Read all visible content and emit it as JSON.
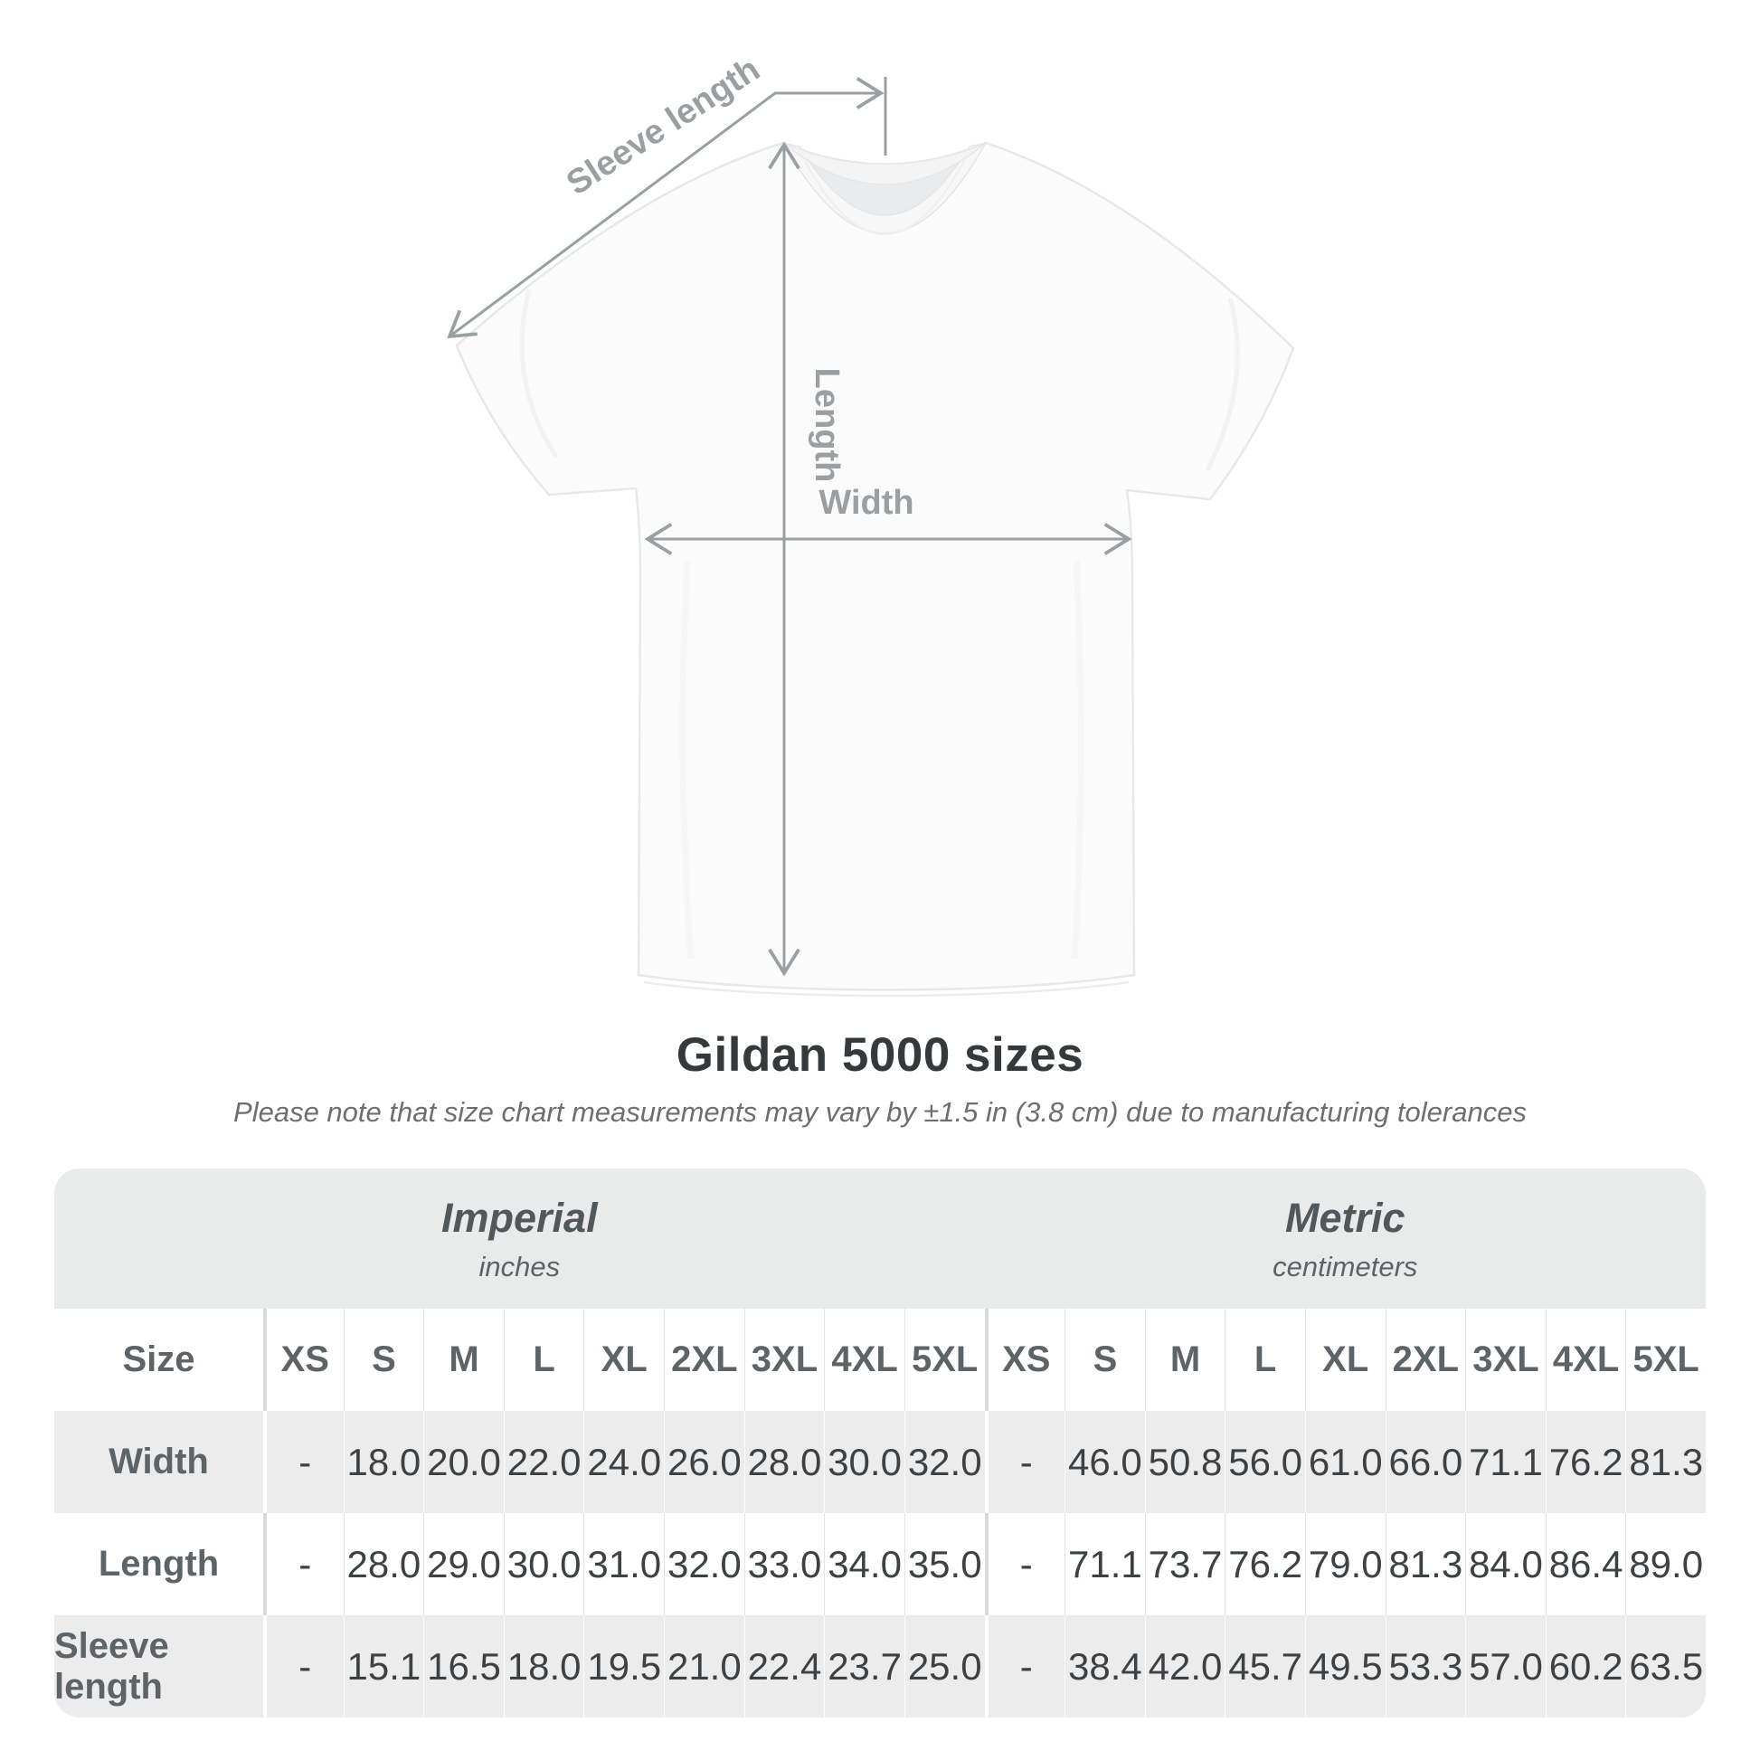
{
  "diagram": {
    "labels": {
      "sleeve_length": "Sleeve length",
      "length": "Length",
      "width": "Width"
    },
    "line_color": "#9aa0a2",
    "label_color": "#9b9fa1"
  },
  "title": "Gildan 5000 sizes",
  "subtitle": "Please note that size chart measurements may vary by ±1.5 in (3.8 cm) due to manufacturing tolerances",
  "table": {
    "size_label": "Size",
    "unit_groups": [
      {
        "name": "Imperial",
        "unit": "inches"
      },
      {
        "name": "Metric",
        "unit": "centimeters"
      }
    ],
    "sizes": [
      "XS",
      "S",
      "M",
      "L",
      "XL",
      "2XL",
      "3XL",
      "4XL",
      "5XL"
    ],
    "rows": [
      {
        "label": "Width",
        "imperial": [
          "-",
          "18.0",
          "20.0",
          "22.0",
          "24.0",
          "26.0",
          "28.0",
          "30.0",
          "32.0"
        ],
        "metric": [
          "-",
          "46.0",
          "50.8",
          "56.0",
          "61.0",
          "66.0",
          "71.1",
          "76.2",
          "81.3"
        ]
      },
      {
        "label": "Length",
        "imperial": [
          "-",
          "28.0",
          "29.0",
          "30.0",
          "31.0",
          "32.0",
          "33.0",
          "34.0",
          "35.0"
        ],
        "metric": [
          "-",
          "71.1",
          "73.7",
          "76.2",
          "79.0",
          "81.3",
          "84.0",
          "86.4",
          "89.0"
        ]
      },
      {
        "label": "Sleeve length",
        "imperial": [
          "-",
          "15.1",
          "16.5",
          "18.0",
          "19.5",
          "21.0",
          "22.4",
          "23.7",
          "25.0"
        ],
        "metric": [
          "-",
          "38.4",
          "42.0",
          "45.7",
          "49.5",
          "53.3",
          "57.0",
          "60.2",
          "63.5"
        ]
      }
    ]
  }
}
